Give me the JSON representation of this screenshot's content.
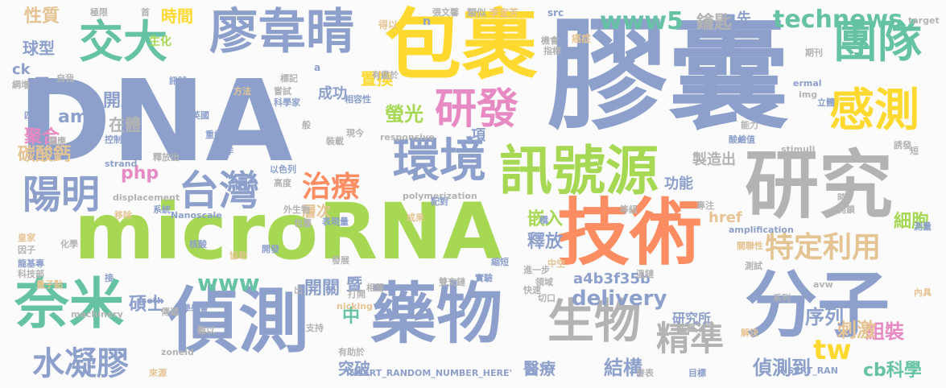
{
  "words": [
    {
      "text": "DNA",
      "color": "#8da0cb"
    },
    {
      "text": "膠囊",
      "color": "#8da0cb"
    },
    {
      "text": "包裹",
      "color": "#ffd92f"
    },
    {
      "text": "microRNA",
      "color": "#a6d854"
    },
    {
      "text": "技術",
      "color": "#fc8d62"
    },
    {
      "text": "研究",
      "color": "#b3b3b3"
    },
    {
      "text": "藥物",
      "color": "#8da0cb"
    },
    {
      "text": "偵測",
      "color": "#8da0cb"
    },
    {
      "text": "分子",
      "color": "#8da0cb"
    },
    {
      "text": "奈米",
      "color": "#66c2a5"
    },
    {
      "text": "廖韋晴",
      "color": "#8da0cb"
    },
    {
      "text": "訊號源",
      "color": "#a6d854"
    },
    {
      "text": "環境",
      "color": "#8da0cb"
    },
    {
      "text": "生物",
      "color": "#b3b3b3"
    },
    {
      "text": "團隊",
      "color": "#66c2a5"
    },
    {
      "text": "感測",
      "color": "#ffd92f"
    },
    {
      "text": "交大",
      "color": "#66c2a5"
    },
    {
      "text": "研發",
      "color": "#e78ac3"
    },
    {
      "text": "台灣",
      "color": "#8da0cb"
    },
    {
      "text": "陽明",
      "color": "#8da0cb"
    },
    {
      "text": "特定利用",
      "color": "#e5c494"
    },
    {
      "text": "水凝膠",
      "color": "#8da0cb"
    },
    {
      "text": "精準",
      "color": "#b3b3b3"
    },
    {
      "text": "technews",
      "color": "#66c2a5"
    },
    {
      "text": "www5",
      "color": "#66c2a5"
    },
    {
      "text": "治療",
      "color": "#fc8d62"
    },
    {
      "text": "www",
      "color": "#66c2a5"
    },
    {
      "text": "delivery",
      "color": "#8da0cb"
    },
    {
      "text": "tw",
      "color": "#ffd92f"
    },
    {
      "text": "結構",
      "color": "#8da0cb"
    },
    {
      "text": "組裝",
      "color": "#e78ac3"
    },
    {
      "text": "刺激",
      "color": "#e5c494"
    },
    {
      "text": "序列",
      "color": "#8da0cb"
    },
    {
      "text": "偵測到",
      "color": "#8da0cb"
    },
    {
      "text": "cb科學",
      "color": "#66c2a5"
    },
    {
      "text": "細胞",
      "color": "#a6d854"
    },
    {
      "text": "碳酸鈣",
      "color": "#e5c494"
    },
    {
      "text": "聚合",
      "color": "#e78ac3"
    },
    {
      "text": "螢光",
      "color": "#a6d854"
    },
    {
      "text": "開關",
      "color": "#8da0cb"
    },
    {
      "text": "嵌入",
      "color": "#a6d854"
    },
    {
      "text": "釋放",
      "color": "#8da0cb"
    },
    {
      "text": "鑰匙",
      "color": "#b3b3b3"
    },
    {
      "text": "時間",
      "color": "#ffd92f"
    },
    {
      "text": "性質",
      "color": "#e5c494"
    },
    {
      "text": "球型",
      "color": "#8da0cb"
    },
    {
      "text": "層",
      "color": "#8da0cb"
    },
    {
      "text": "開啟",
      "color": "#8da0cb"
    },
    {
      "text": "amp",
      "color": "#8da0cb"
    },
    {
      "text": "php",
      "color": "#e78ac3"
    },
    {
      "text": "碩士",
      "color": "#8da0cb"
    },
    {
      "text": "置換",
      "color": "#ffd92f"
    },
    {
      "text": "在體",
      "color": "#b3b3b3"
    },
    {
      "text": "層次",
      "color": "#e5c494"
    },
    {
      "text": "功能",
      "color": "#8da0cb"
    },
    {
      "text": "製造出",
      "color": "#b3b3b3"
    },
    {
      "text": "a4b3f35b",
      "color": "#8da0cb"
    },
    {
      "text": "成功",
      "color": "#8da0cb"
    },
    {
      "text": "研究所",
      "color": "#8da0cb"
    },
    {
      "text": "href",
      "color": "#e5c494"
    },
    {
      "text": "先",
      "color": "#8da0cb"
    },
    {
      "text": "項",
      "color": "#8da0cb"
    },
    {
      "text": "中",
      "color": "#66c2a5"
    },
    {
      "text": "暨",
      "color": "#8da0cb"
    },
    {
      "text": "突破",
      "color": "#8da0cb"
    },
    {
      "text": "醫療",
      "color": "#8da0cb"
    },
    {
      "text": "生化",
      "color": "#a6d854"
    },
    {
      "text": "ck",
      "color": "#8da0cb"
    },
    {
      "text": "極限",
      "color": "#b3b3b3"
    },
    {
      "text": "首",
      "color": "#b3b3b3"
    },
    {
      "text": "張文馨",
      "color": "#b3b3b3"
    },
    {
      "text": "類似",
      "color": "#b3b3b3"
    },
    {
      "text": "李宜芳",
      "color": "#e5c494"
    },
    {
      "text": "src",
      "color": "#8da0cb"
    },
    {
      "text": "target",
      "color": "#b3b3b3"
    },
    {
      "text": "得以",
      "color": "#e5c494"
    },
    {
      "text": "n",
      "color": "#8da0cb"
    },
    {
      "text": "標記",
      "color": "#b3b3b3"
    },
    {
      "text": "嘗試",
      "color": "#b3b3b3"
    },
    {
      "text": "科學家",
      "color": "#8da0cb"
    },
    {
      "text": "a",
      "color": "#8da0cb"
    },
    {
      "text": "相容性",
      "color": "#8da0cb"
    },
    {
      "text": "有鑑於",
      "color": "#b3b3b3"
    },
    {
      "text": "現今",
      "color": "#b3b3b3"
    },
    {
      "text": "responsive",
      "color": "#b3b3b3"
    },
    {
      "text": "癌症",
      "color": "#e5c494"
    },
    {
      "text": "指標",
      "color": "#b3b3b3"
    },
    {
      "text": "機會",
      "color": "#b3b3b3"
    },
    {
      "text": "期刊",
      "color": "#b3b3b3"
    },
    {
      "text": "img",
      "color": "#b3b3b3"
    },
    {
      "text": "ermal",
      "color": "#8da0cb"
    },
    {
      "text": "立體",
      "color": "#8da0cb"
    },
    {
      "text": "能力",
      "color": "#b3b3b3"
    },
    {
      "text": "酸鹼值",
      "color": "#8da0cb"
    },
    {
      "text": "stimuli",
      "color": "#b3b3b3"
    },
    {
      "text": "誘發",
      "color": "#b3b3b3"
    },
    {
      "text": "短",
      "color": "#b3b3b3"
    },
    {
      "text": "英國",
      "color": "#8da0cb"
    },
    {
      "text": "_blank'",
      "color": "#8da0cb"
    },
    {
      "text": "訊號",
      "color": "#8da0cb"
    },
    {
      "text": "方法",
      "color": "#e5c494"
    },
    {
      "text": "四",
      "color": "#8da0cb"
    },
    {
      "text": "重組",
      "color": "#8da0cb"
    },
    {
      "text": "控制",
      "color": "#8da0cb"
    },
    {
      "text": "合作",
      "color": "#8da0cb"
    },
    {
      "text": "釋放出",
      "color": "#b3b3b3"
    },
    {
      "text": "strand",
      "color": "#8da0cb"
    },
    {
      "text": "以色列",
      "color": "#8da0cb"
    },
    {
      "text": "高度",
      "color": "#b3b3b3"
    },
    {
      "text": "displacement",
      "color": "#b3b3b3"
    },
    {
      "text": "polymerization",
      "color": "#b3b3b3"
    },
    {
      "text": "Nanoscale",
      "color": "#8da0cb"
    },
    {
      "text": "外生物",
      "color": "#b3b3b3"
    },
    {
      "text": "配對",
      "color": "#8da0cb"
    },
    {
      "text": "包覆",
      "color": "#b3b3b3"
    },
    {
      "text": "表現量",
      "color": "#8da0cb"
    },
    {
      "text": "成果",
      "color": "#e5c494"
    },
    {
      "text": "橋",
      "color": "#8da0cb"
    },
    {
      "text": "等級",
      "color": "#b3b3b3"
    },
    {
      "text": "專注",
      "color": "#b3b3b3"
    },
    {
      "text": "時",
      "color": "#b3b3b3"
    },
    {
      "text": "開鎖",
      "color": "#b3b3b3"
    },
    {
      "text": "測量",
      "color": "#8da0cb"
    },
    {
      "text": "amplification",
      "color": "#8da0cb"
    },
    {
      "text": "關聯性",
      "color": "#e5c494"
    },
    {
      "text": "測試",
      "color": "#b3b3b3"
    },
    {
      "text": "溫鏈",
      "color": "#b3b3b3"
    },
    {
      "text": "核酸",
      "color": "#8da0cb"
    },
    {
      "text": "協助",
      "color": "#e5c494"
    },
    {
      "text": "開發",
      "color": "#8da0cb"
    },
    {
      "text": "發展",
      "color": "#b3b3b3"
    },
    {
      "text": "縮短",
      "color": "#8da0cb"
    },
    {
      "text": "進一步",
      "color": "#b3b3b3"
    },
    {
      "text": "中空",
      "color": "#e5c494"
    },
    {
      "text": "領域",
      "color": "#b3b3b3"
    },
    {
      "text": "快速",
      "color": "#b3b3b3"
    },
    {
      "text": "雙交鏈",
      "color": "#b3b3b3"
    },
    {
      "text": "實驗",
      "color": "#8da0cb"
    },
    {
      "text": "相關",
      "color": "#b3b3b3"
    },
    {
      "text": "切口",
      "color": "#b3b3b3"
    },
    {
      "text": "打開",
      "color": "#b3b3b3"
    },
    {
      "text": "nicking",
      "color": "#e5c494"
    },
    {
      "text": "avw",
      "color": "#b3b3b3"
    },
    {
      "text": "系列",
      "color": "#b3b3b3"
    },
    {
      "text": "內具",
      "color": "#e5c494"
    },
    {
      "text": "生醫",
      "color": "#b3b3b3"
    },
    {
      "text": "解決",
      "color": "#e5c494"
    },
    {
      "text": "皇家",
      "color": "#e5c494"
    },
    {
      "text": "因子",
      "color": "#b3b3b3"
    },
    {
      "text": "化學",
      "color": "#b3b3b3"
    },
    {
      "text": "龍基專",
      "color": "#8da0cb"
    },
    {
      "text": "科技部",
      "color": "#b3b3b3"
    },
    {
      "text": "量子點",
      "color": "#e5c494"
    },
    {
      "text": "接",
      "color": "#8da0cb"
    },
    {
      "text": "出",
      "color": "#b3b3b3"
    },
    {
      "text": "isoth",
      "color": "#8da0cb"
    },
    {
      "text": "化學學會",
      "color": "#8da0cb"
    },
    {
      "text": "machinery",
      "color": "#b3b3b3"
    },
    {
      "text": "傳遞",
      "color": "#b3b3b3"
    },
    {
      "text": "難以",
      "color": "#b3b3b3"
    },
    {
      "text": "支持",
      "color": "#b3b3b3"
    },
    {
      "text": "zoneid",
      "color": "#b3b3b3"
    },
    {
      "text": "有助於",
      "color": "#b3b3b3"
    },
    {
      "text": "來源",
      "color": "#e5c494"
    },
    {
      "text": "INSERT_RANDOM_NUMBER_HERE'",
      "color": "#8da0cb"
    },
    {
      "text": "INSERT_RAN",
      "color": "#8da0cb"
    },
    {
      "text": "發表",
      "color": "#b3b3b3"
    },
    {
      "text": "目標",
      "color": "#8da0cb"
    },
    {
      "text": "網增",
      "color": "#b3b3b3"
    },
    {
      "text": "自我",
      "color": "#b3b3b3"
    },
    {
      "text": "系統",
      "color": "#8da0cb"
    },
    {
      "text": "移除",
      "color": "#e5c494"
    },
    {
      "text": "般",
      "color": "#b3b3b3"
    },
    {
      "text": "裝載",
      "color": "#b3b3b3"
    },
    {
      "text": "審應",
      "color": "#b3b3b3"
    }
  ]
}
